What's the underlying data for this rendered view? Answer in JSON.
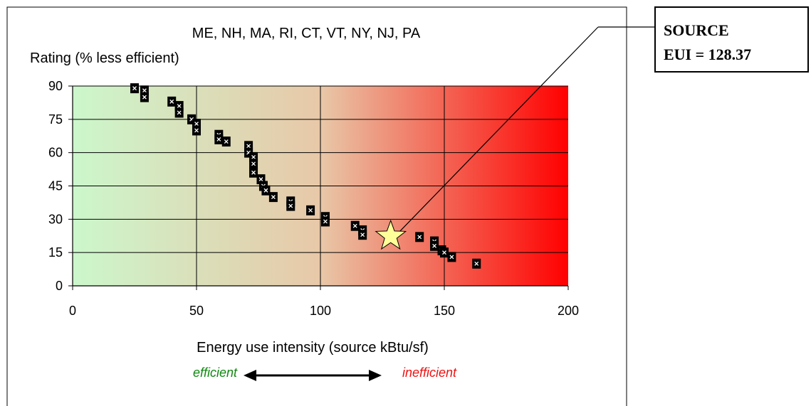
{
  "chart_data": {
    "type": "scatter",
    "title": "ME, NH, MA, RI, CT, VT, NY, NJ, PA",
    "ylabel": "Rating (% less efficient)",
    "xlabel": "Energy use intensity (source kBtu/sf)",
    "xlim": [
      0,
      200
    ],
    "ylim": [
      0,
      90
    ],
    "x_ticks": [
      0,
      50,
      100,
      150,
      200
    ],
    "y_ticks": [
      0,
      15,
      30,
      45,
      60,
      75,
      90
    ],
    "grid": true,
    "background_gradient": [
      "#ccf7cc",
      "#ff0000"
    ],
    "scale_labels": {
      "efficient": "efficient",
      "inefficient": "inefficient"
    },
    "points": [
      {
        "x": 25,
        "y": 89
      },
      {
        "x": 29,
        "y": 88
      },
      {
        "x": 29,
        "y": 85
      },
      {
        "x": 40,
        "y": 83
      },
      {
        "x": 43,
        "y": 81
      },
      {
        "x": 43,
        "y": 78
      },
      {
        "x": 48,
        "y": 75
      },
      {
        "x": 50,
        "y": 73
      },
      {
        "x": 50,
        "y": 70
      },
      {
        "x": 59,
        "y": 68
      },
      {
        "x": 59,
        "y": 66
      },
      {
        "x": 62,
        "y": 65
      },
      {
        "x": 71,
        "y": 63
      },
      {
        "x": 71,
        "y": 60
      },
      {
        "x": 73,
        "y": 58
      },
      {
        "x": 73,
        "y": 55
      },
      {
        "x": 73,
        "y": 51
      },
      {
        "x": 76,
        "y": 48
      },
      {
        "x": 77,
        "y": 45
      },
      {
        "x": 78,
        "y": 43
      },
      {
        "x": 81,
        "y": 40
      },
      {
        "x": 88,
        "y": 38
      },
      {
        "x": 88,
        "y": 36
      },
      {
        "x": 96,
        "y": 34
      },
      {
        "x": 102,
        "y": 31
      },
      {
        "x": 102,
        "y": 29
      },
      {
        "x": 114,
        "y": 27
      },
      {
        "x": 117,
        "y": 25
      },
      {
        "x": 117,
        "y": 23
      },
      {
        "x": 140,
        "y": 22
      },
      {
        "x": 146,
        "y": 20
      },
      {
        "x": 146,
        "y": 18
      },
      {
        "x": 149,
        "y": 16
      },
      {
        "x": 150,
        "y": 15
      },
      {
        "x": 153,
        "y": 13
      },
      {
        "x": 163,
        "y": 10
      }
    ],
    "highlight": {
      "x": 128.37,
      "y": 23,
      "marker": "star",
      "color": "#ffff99"
    },
    "callout": {
      "line1": "SOURCE",
      "line2": "EUI = 128.37"
    }
  }
}
